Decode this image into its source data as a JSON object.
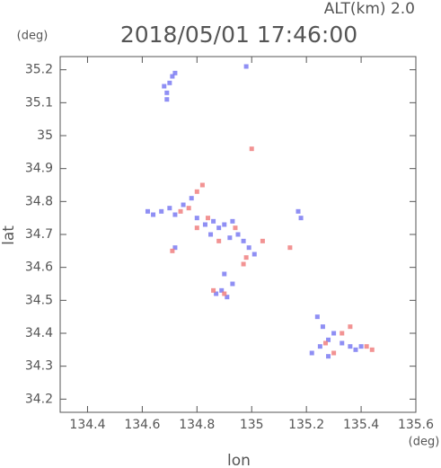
{
  "chart_data": {
    "type": "scatter",
    "title": "2018/05/01 17:46:00",
    "subtitle": "ALT(km) 2.0",
    "y_unit": "(deg)",
    "x_unit": "(deg)",
    "x_label": "lon",
    "y_label": "lat",
    "xlim": [
      134.3,
      135.6
    ],
    "ylim": [
      34.16,
      35.24
    ],
    "xticks": [
      134.4,
      134.6,
      134.8,
      135.0,
      135.2,
      135.4,
      135.6
    ],
    "yticks": [
      34.2,
      34.3,
      34.4,
      34.5,
      34.6,
      34.7,
      34.8,
      34.9,
      35.0,
      35.1,
      35.2
    ],
    "series": [
      {
        "color": "#7b7bf2",
        "x": [
          134.68,
          134.69,
          134.7,
          134.71,
          134.69,
          134.72,
          134.98,
          134.62,
          134.64,
          134.67,
          134.7,
          134.72,
          134.75,
          134.78,
          134.8,
          134.83,
          134.86,
          134.88,
          134.9,
          134.93,
          134.95,
          134.97,
          134.99,
          135.01,
          134.92,
          134.85,
          134.72,
          135.18,
          135.17,
          134.87,
          134.89,
          134.91,
          134.93,
          134.9,
          135.22,
          135.25,
          135.28,
          135.3,
          135.33,
          135.26,
          135.36,
          135.38,
          135.4,
          135.24,
          135.28
        ],
        "y": [
          35.15,
          35.13,
          35.16,
          35.18,
          35.11,
          35.19,
          35.21,
          34.77,
          34.76,
          34.77,
          34.78,
          34.76,
          34.79,
          34.81,
          34.75,
          34.73,
          34.74,
          34.72,
          34.73,
          34.74,
          34.7,
          34.68,
          34.66,
          34.64,
          34.69,
          34.7,
          34.66,
          34.75,
          34.77,
          34.52,
          34.53,
          34.51,
          34.55,
          34.58,
          34.34,
          34.36,
          34.38,
          34.4,
          34.37,
          34.42,
          34.36,
          34.35,
          34.36,
          34.45,
          34.33
        ]
      },
      {
        "color": "#f08080",
        "x": [
          134.82,
          134.8,
          134.77,
          134.74,
          134.8,
          134.84,
          134.88,
          134.94,
          135.04,
          135.0,
          135.14,
          134.97,
          134.86,
          134.9,
          135.3,
          135.33,
          135.27,
          135.36,
          135.42,
          135.44,
          134.71,
          134.98
        ],
        "y": [
          34.85,
          34.83,
          34.78,
          34.77,
          34.72,
          34.75,
          34.68,
          34.72,
          34.68,
          34.96,
          34.66,
          34.61,
          34.53,
          34.52,
          34.34,
          34.4,
          34.37,
          34.42,
          34.36,
          34.35,
          34.65,
          34.63
        ]
      }
    ]
  }
}
